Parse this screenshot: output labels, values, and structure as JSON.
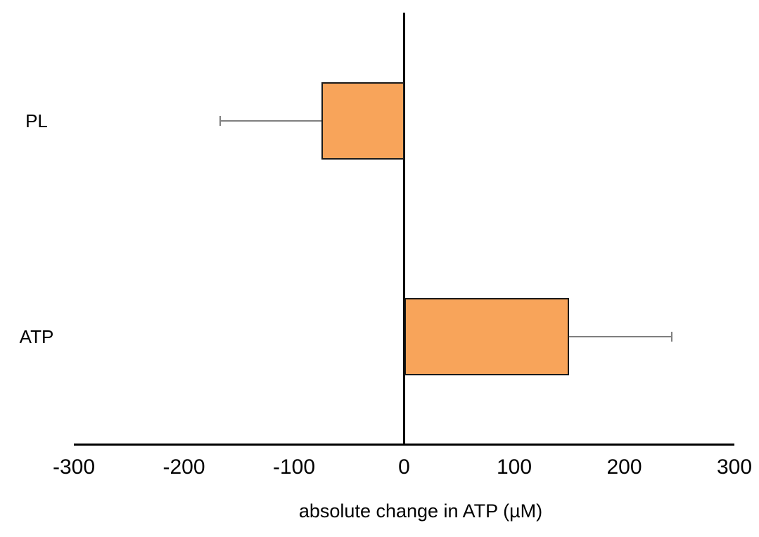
{
  "chart_data": {
    "type": "bar",
    "orientation": "horizontal",
    "title": "",
    "categories": [
      "PL",
      "ATP"
    ],
    "values": [
      -75,
      150
    ],
    "errors": [
      92,
      93
    ],
    "xlabel": "absolute change in ATP (µM)",
    "ylabel": "",
    "xlim": [
      -300,
      300
    ],
    "xticks": [
      -300,
      -200,
      -100,
      0,
      100,
      200,
      300
    ],
    "grid": false,
    "legend": "none",
    "colors": {
      "bar_fill": "#F8A45A",
      "bar_border": "#1A1A1A",
      "error_bar": "#7F7F7F",
      "axis": "#000000",
      "text": "#000000",
      "background": "#FFFFFF"
    }
  }
}
